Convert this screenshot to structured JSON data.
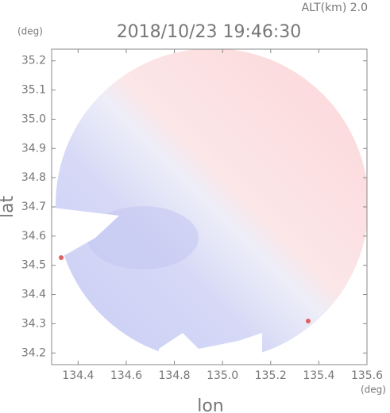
{
  "chart_data": {
    "type": "radar-map",
    "title": "2018/10/23 19:46:30",
    "subtitle": "ALT(km) 2.0",
    "x_label": "lon",
    "x_unit": "(deg)",
    "y_label": "lat",
    "y_unit": "(deg)",
    "xlim": [
      134.29,
      135.6
    ],
    "ylim": [
      34.16,
      35.24
    ],
    "xticks": [
      134.4,
      134.6,
      134.8,
      {
        "value": 135.0,
        "label": "135.0"
      },
      135.2,
      135.4,
      135.6
    ],
    "yticks": [
      {
        "value": 34.2,
        "label": "34.2"
      },
      34.3,
      34.4,
      34.5,
      34.6,
      34.7,
      34.8,
      34.9,
      {
        "value": 35.0,
        "label": "35.0"
      },
      35.1,
      35.2
    ]
  }
}
